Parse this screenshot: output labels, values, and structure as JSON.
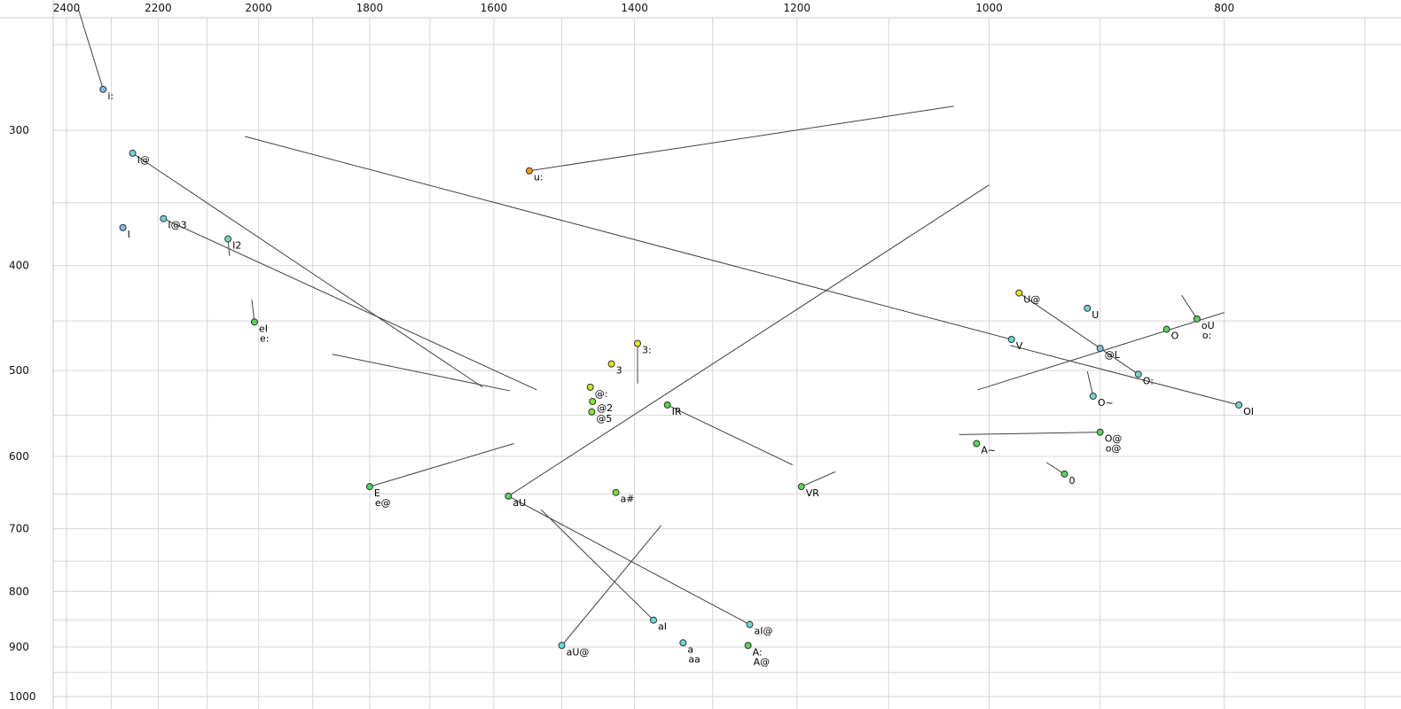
{
  "chart_data": {
    "type": "scatter",
    "title": "",
    "description": "Vowel formant plot (F2 horizontal reversed log scale, F1 vertical inverted log scale) with diphthong trajectory lines",
    "x_axis": {
      "labeled_ticks": [
        2400,
        2200,
        2000,
        1800,
        1600,
        1400,
        1200,
        1000,
        800
      ],
      "minor_tick_step": 100,
      "minor_tick_max": 2400,
      "minor_tick_min": 700,
      "scale": "log",
      "reversed": true
    },
    "y_axis": {
      "labeled_ticks": [
        300,
        400,
        500,
        600,
        700,
        800,
        900,
        1000
      ],
      "minor_tick_step": 50,
      "minor_tick_min": 250,
      "minor_tick_max": 1000,
      "scale": "log",
      "inverted": true
    },
    "colors": {
      "background": "#ffffff",
      "grid": "#d6d6d6",
      "border": "#c8c8c8",
      "trajectory": "#404040",
      "tick_text": "#111111",
      "label_text": "#000000",
      "point_stroke": "#2f2f2f"
    },
    "points": [
      {
        "label": "i:",
        "f2": 2318,
        "f1": 275,
        "color": "#84b8e8"
      },
      {
        "label": "I@",
        "f2": 2254,
        "f1": 315,
        "color": "#74d4d8"
      },
      {
        "label": "I@3",
        "f2": 2189,
        "f1": 362,
        "color": "#74d4d8"
      },
      {
        "label": "I",
        "f2": 2275,
        "f1": 369,
        "color": "#84b8e8"
      },
      {
        "label": "I2",
        "f2": 2059,
        "f1": 378,
        "color": "#6edcbe"
      },
      {
        "label": "eI",
        "f2": 2008,
        "f1": 451,
        "color": "#52d452",
        "label2": "e:"
      },
      {
        "label": "u:",
        "f2": 1547,
        "f1": 327,
        "color": "#f09c1e"
      },
      {
        "label": "3:",
        "f2": 1396,
        "f1": 472,
        "color": "#e8e41e"
      },
      {
        "label": "3",
        "f2": 1431,
        "f1": 493,
        "color": "#e8e41e"
      },
      {
        "label": "@:",
        "f2": 1460,
        "f1": 518,
        "color": "#c6e426"
      },
      {
        "label": "@2",
        "f2": 1457,
        "f1": 534,
        "color": "#82e83e"
      },
      {
        "label": "@5",
        "f2": 1458,
        "f1": 546,
        "color": "#82e83e"
      },
      {
        "label": "IR",
        "f2": 1357,
        "f1": 538,
        "color": "#52d452"
      },
      {
        "label": "U@",
        "f2": 972,
        "f1": 424,
        "color": "#e0e41c"
      },
      {
        "label": "U",
        "f2": 911,
        "f1": 438,
        "color": "#6cd8d4"
      },
      {
        "label": "V",
        "f2": 979,
        "f1": 468,
        "color": "#6cd8d4"
      },
      {
        "label": "oU",
        "f2": 821,
        "f1": 448,
        "color": "#5cd45c",
        "label2": "o:"
      },
      {
        "label": "O",
        "f2": 845,
        "f1": 458,
        "color": "#5cd45c"
      },
      {
        "label": "@L",
        "f2": 900,
        "f1": 477,
        "color": "#80c4e4"
      },
      {
        "label": "O:",
        "f2": 868,
        "f1": 504,
        "color": "#6cd8d4"
      },
      {
        "label": "O~",
        "f2": 906,
        "f1": 528,
        "color": "#6cd8d4"
      },
      {
        "label": "OI",
        "f2": 789,
        "f1": 538,
        "color": "#6cd8d4"
      },
      {
        "label": "O@",
        "f2": 900,
        "f1": 570,
        "color": "#5cd45c",
        "label2": "o@"
      },
      {
        "label": "A~",
        "f2": 1012,
        "f1": 584,
        "color": "#5cd45c"
      },
      {
        "label": "0",
        "f2": 931,
        "f1": 623,
        "color": "#5cd45c"
      },
      {
        "label": "VR",
        "f2": 1195,
        "f1": 640,
        "color": "#5cd45c"
      },
      {
        "label": "E",
        "f2": 1800,
        "f1": 640,
        "color": "#52d452",
        "label2": "e@"
      },
      {
        "label": "aU",
        "f2": 1578,
        "f1": 653,
        "color": "#5cd45c"
      },
      {
        "label": "a#",
        "f2": 1425,
        "f1": 648,
        "color": "#6ee046"
      },
      {
        "label": "aI",
        "f2": 1375,
        "f1": 850,
        "color": "#6cd8d4"
      },
      {
        "label": "aI@",
        "f2": 1255,
        "f1": 858,
        "color": "#6cd8d4"
      },
      {
        "label": "aU@",
        "f2": 1500,
        "f1": 897,
        "color": "#6cd8d4"
      },
      {
        "label": "a",
        "f2": 1337,
        "f1": 892,
        "color": "#6cd8d4",
        "label2": "aa"
      },
      {
        "label": "A:",
        "f2": 1257,
        "f1": 897,
        "color": "#5cd45c",
        "label2": "A@"
      }
    ],
    "trajectory_lines": [
      {
        "name": "i:-tail",
        "seg": [
          2373,
          232,
          2318,
          275
        ]
      },
      {
        "name": "I@-line",
        "seg": [
          2254,
          315,
          1617,
          518
        ]
      },
      {
        "name": "I@3-line",
        "seg": [
          2189,
          362,
          1536,
          521
        ]
      },
      {
        "name": "I2-tail",
        "seg": [
          2059,
          378,
          2056,
          392
        ]
      },
      {
        "name": "eI-tail",
        "seg": [
          2013,
          430,
          2008,
          451
        ]
      },
      {
        "name": "u:-line",
        "seg": [
          1547,
          327,
          1034,
          285
        ]
      },
      {
        "name": "3:-tail",
        "seg": [
          1396,
          472,
          1396,
          514
        ]
      },
      {
        "name": "long-shallow-line",
        "seg": [
          2026,
          304,
          979,
          468
        ]
      },
      {
        "name": "aU-line",
        "seg": [
          1578,
          653,
          1000,
          337
        ]
      },
      {
        "name": "IR-line",
        "seg": [
          1357,
          538,
          1205,
          611
        ]
      },
      {
        "name": "aI-line",
        "seg": [
          1375,
          850,
          1530,
          672
        ]
      },
      {
        "name": "aI@-line",
        "seg": [
          1255,
          858,
          1578,
          653
        ]
      },
      {
        "name": "aU@-line",
        "seg": [
          1500,
          897,
          1365,
          695
        ]
      },
      {
        "name": "E-line",
        "seg": [
          1800,
          640,
          1570,
          584
        ]
      },
      {
        "name": "mid-left-segment",
        "seg": [
          1865,
          483,
          1576,
          522
        ]
      },
      {
        "name": "U@-line",
        "seg": [
          972,
          424,
          868,
          504
        ]
      },
      {
        "name": "@L-line",
        "seg": [
          1011,
          521,
          800,
          442
        ]
      },
      {
        "name": "oU-tail",
        "seg": [
          833,
          426,
          821,
          448
        ]
      },
      {
        "name": "OI-line",
        "seg": [
          789,
          538,
          980,
          474
        ]
      },
      {
        "name": "O~-tail",
        "seg": [
          911,
          501,
          906,
          528
        ]
      },
      {
        "name": "O@-line",
        "seg": [
          1029,
          573,
          900,
          570
        ]
      },
      {
        "name": "0-tail",
        "seg": [
          947,
          608,
          931,
          623
        ]
      },
      {
        "name": "VR-tail",
        "seg": [
          1195,
          640,
          1157,
          620
        ]
      }
    ]
  }
}
